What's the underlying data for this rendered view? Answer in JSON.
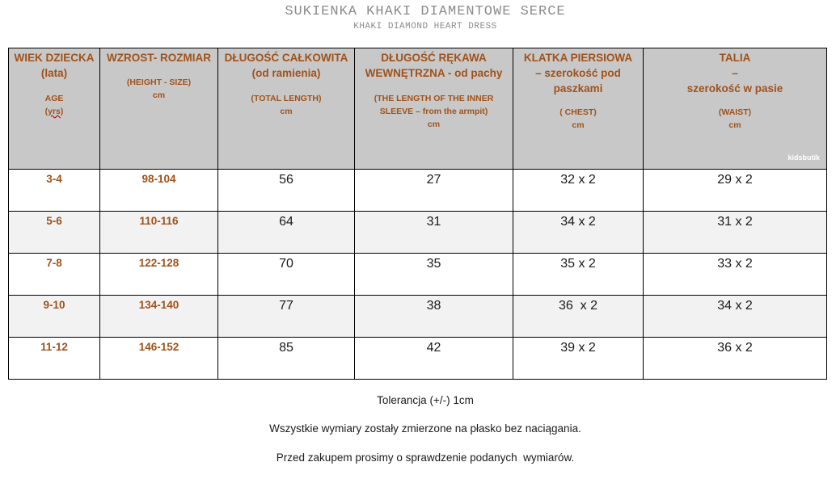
{
  "header": {
    "title": "SUKIENKA KHAKI DIAMENTOWE SERCE",
    "subtitle": "KHAKI DIAMOND HEART DRESS"
  },
  "table": {
    "columns": [
      {
        "main": "WIEK DZIECKA\n(lata)",
        "sub_prefix": "AGE\n(",
        "sub_yrs": "yrs",
        "sub_suffix": ")"
      },
      {
        "main": "WZROST- ROZMIAR",
        "sub": "(HEIGHT - SIZE)\ncm"
      },
      {
        "main": "DŁUGOŚĆ CAŁKOWITA\n(od ramienia)",
        "sub": "(TOTAL LENGTH)\ncm"
      },
      {
        "main": "DŁUGOŚĆ RĘKAWA\nWEWNĘTRZNA - od pachy",
        "sub": "(THE LENGTH OF THE INNER\nSLEEVE – from the armpit)\ncm"
      },
      {
        "main": "KLATKA PIERSIOWA\n– szerokość pod\npaszkami",
        "sub": "( CHEST)\ncm"
      },
      {
        "main": "TALIA\n–\nszerokość w pasie",
        "sub": "(WAIST)\ncm"
      }
    ],
    "watermark": "kidsbutik",
    "rows": [
      {
        "age": "3-4",
        "size": "98-104",
        "length": "56",
        "sleeve": "27",
        "chest": "32 x 2",
        "waist": "29 x 2"
      },
      {
        "age": "5-6",
        "size": "110-116",
        "length": "64",
        "sleeve": "31",
        "chest": "34 x 2",
        "waist": "31 x 2"
      },
      {
        "age": "7-8",
        "size": "122-128",
        "length": "70",
        "sleeve": "35",
        "chest": "35 x 2",
        "waist": "33 x 2"
      },
      {
        "age": "9-10",
        "size": "134-140",
        "length": "77",
        "sleeve": "38",
        "chest": "36  x 2",
        "waist": "34 x 2"
      },
      {
        "age": "11-12",
        "size": "146-152",
        "length": "85",
        "sleeve": "42",
        "chest": "39 x 2",
        "waist": "36 x 2"
      }
    ]
  },
  "notes": {
    "tolerance": "Tolerancja (+/-) 1cm",
    "flat": "Wszystkie wymiary zostały zmierzone na płasko bez naciągania.",
    "check": "Przed zakupem prosimy o sprawdzenie podanych  wymiarów."
  }
}
